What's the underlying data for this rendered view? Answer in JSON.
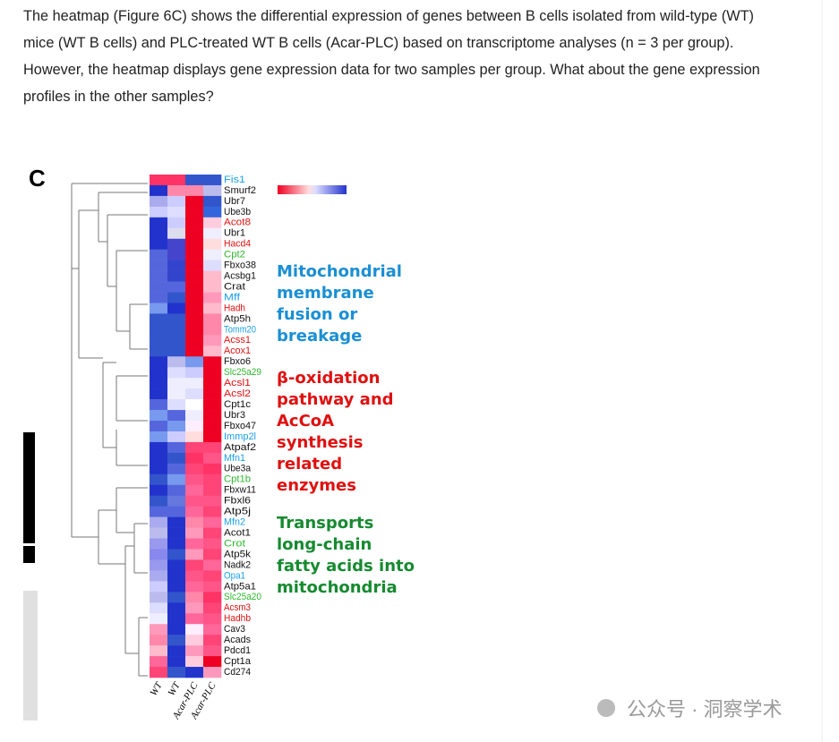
{
  "paragraph_lines": [
    "The heatmap (Figure 6C) shows the differential expression of genes between B cells isolated from wild-type (WT)",
    "mice (WT B cells) and PLC-treated WT B cells (Acar-PLC) based on transcriptome analyses (n = 3 per group).",
    "However, the heatmap displays gene expression data for two samples per group. What about the gene expression",
    "profiles in the other samples?"
  ],
  "figure": {
    "panel_label": "C",
    "column_labels": [
      "WT",
      "WT",
      "Acar-PLC",
      "Acar-PLC"
    ],
    "genes": [
      {
        "name": "Fis1",
        "color": "#1aa0e8",
        "cells": [
          "#f36",
          "#f36",
          "#35c",
          "#35c"
        ]
      },
      {
        "name": "Smurf2",
        "color": "#111",
        "cells": [
          "#23c",
          "#f8a",
          "#f8a",
          "#bbe"
        ]
      },
      {
        "name": "Ubr7",
        "color": "#111",
        "cells": [
          "#aae",
          "#ccf",
          "#e02",
          "#35c"
        ]
      },
      {
        "name": "Ube3b",
        "color": "#111",
        "cells": [
          "#ccf",
          "#ddf",
          "#e02",
          "#36d"
        ]
      },
      {
        "name": "Acot8",
        "color": "#e01010",
        "cells": [
          "#23c",
          "#ccf",
          "#e02",
          "#fcd"
        ]
      },
      {
        "name": "Ubr1",
        "color": "#111",
        "cells": [
          "#23c",
          "#dde",
          "#e02",
          "#eef"
        ]
      },
      {
        "name": "Hacd4",
        "color": "#e01010",
        "cells": [
          "#23c",
          "#44c",
          "#e02",
          "#fdd"
        ]
      },
      {
        "name": "Cpt2",
        "color": "#2eb82e",
        "cells": [
          "#56d",
          "#44c",
          "#e02",
          "#eef"
        ]
      },
      {
        "name": "Fbxo38",
        "color": "#111",
        "cells": [
          "#56d",
          "#34c",
          "#e02",
          "#ddf"
        ]
      },
      {
        "name": "Acsbg1",
        "color": "#111",
        "cells": [
          "#56d",
          "#34c",
          "#e02",
          "#fbc"
        ]
      },
      {
        "name": "Crat",
        "color": "#111",
        "cells": [
          "#56d",
          "#56d",
          "#e02",
          "#fbc"
        ]
      },
      {
        "name": "Mff",
        "color": "#1aa0e8",
        "cells": [
          "#56d",
          "#35c",
          "#e02",
          "#f9b"
        ]
      },
      {
        "name": "Hadh",
        "color": "#e01010",
        "cells": [
          "#79e",
          "#23c",
          "#e02",
          "#fbc"
        ]
      },
      {
        "name": "Atp5h",
        "color": "#111",
        "cells": [
          "#35c",
          "#35c",
          "#e02",
          "#f8a"
        ]
      },
      {
        "name": "Tomm20",
        "color": "#1aa0e8",
        "cells": [
          "#35c",
          "#35c",
          "#e02",
          "#f8a"
        ]
      },
      {
        "name": "Acss1",
        "color": "#e01010",
        "cells": [
          "#35c",
          "#35c",
          "#e02",
          "#f9b"
        ]
      },
      {
        "name": "Acox1",
        "color": "#e01010",
        "cells": [
          "#35c",
          "#35c",
          "#e02",
          "#fbc"
        ]
      },
      {
        "name": "Fbxo6",
        "color": "#111",
        "cells": [
          "#23c",
          "#bbe",
          "#79e",
          "#e02"
        ]
      },
      {
        "name": "Slc25a29",
        "color": "#2eb82e",
        "cells": [
          "#23c",
          "#ddf",
          "#ccf",
          "#e02"
        ]
      },
      {
        "name": "Acsl1",
        "color": "#e01010",
        "cells": [
          "#23c",
          "#eef",
          "#eef",
          "#e02"
        ]
      },
      {
        "name": "Acsl2",
        "color": "#e01010",
        "cells": [
          "#23c",
          "#eef",
          "#ddf",
          "#e02"
        ]
      },
      {
        "name": "Cpt1c",
        "color": "#111",
        "cells": [
          "#56d",
          "#ddf",
          "#fff",
          "#e02"
        ]
      },
      {
        "name": "Ubr3",
        "color": "#111",
        "cells": [
          "#79e",
          "#56d",
          "#eef",
          "#e02"
        ]
      },
      {
        "name": "Fbxo47",
        "color": "#111",
        "cells": [
          "#56d",
          "#79e",
          "#fef",
          "#e02"
        ]
      },
      {
        "name": "Immp2l",
        "color": "#1aa0e8",
        "cells": [
          "#79e",
          "#ccf",
          "#fdd",
          "#e02"
        ]
      },
      {
        "name": "Atpaf2",
        "color": "#111",
        "cells": [
          "#23c",
          "#56d",
          "#f47",
          "#f47"
        ]
      },
      {
        "name": "Mfn1",
        "color": "#1aa0e8",
        "cells": [
          "#23c",
          "#35c",
          "#f36",
          "#f58"
        ]
      },
      {
        "name": "Ube3a",
        "color": "#111",
        "cells": [
          "#23c",
          "#56d",
          "#f47",
          "#f36"
        ]
      },
      {
        "name": "Cpt1b",
        "color": "#2eb82e",
        "cells": [
          "#35c",
          "#79e",
          "#f58",
          "#f47"
        ]
      },
      {
        "name": "Fbxw11",
        "color": "#111",
        "cells": [
          "#23c",
          "#56d",
          "#f69",
          "#f47"
        ]
      },
      {
        "name": "Fbxl6",
        "color": "#111",
        "cells": [
          "#35c",
          "#67d",
          "#f58",
          "#f58"
        ]
      },
      {
        "name": "Atp5j",
        "color": "#111",
        "cells": [
          "#56d",
          "#56d",
          "#f69",
          "#f47"
        ]
      },
      {
        "name": "Mfn2",
        "color": "#1aa0e8",
        "cells": [
          "#aae",
          "#23c",
          "#f8a",
          "#f69"
        ]
      },
      {
        "name": "Acot1",
        "color": "#111",
        "cells": [
          "#bbe",
          "#23c",
          "#f9b",
          "#f47"
        ]
      },
      {
        "name": "Crot",
        "color": "#2eb82e",
        "cells": [
          "#99e",
          "#23c",
          "#f69",
          "#f58"
        ]
      },
      {
        "name": "Atp5k",
        "color": "#111",
        "cells": [
          "#88e",
          "#35c",
          "#f9b",
          "#f47"
        ]
      },
      {
        "name": "Nadk2",
        "color": "#111",
        "cells": [
          "#99e",
          "#23c",
          "#f47",
          "#f69"
        ]
      },
      {
        "name": "Opa1",
        "color": "#1aa0e8",
        "cells": [
          "#aae",
          "#23c",
          "#f58",
          "#f47"
        ]
      },
      {
        "name": "Atp5a1",
        "color": "#111",
        "cells": [
          "#ccf",
          "#23c",
          "#f69",
          "#f58"
        ]
      },
      {
        "name": "Slc25a20",
        "color": "#2eb82e",
        "cells": [
          "#bbe",
          "#35c",
          "#f8a",
          "#f36"
        ]
      },
      {
        "name": "Acsm3",
        "color": "#e01010",
        "cells": [
          "#ddf",
          "#23c",
          "#f9b",
          "#f47"
        ]
      },
      {
        "name": "Hadhb",
        "color": "#e01010",
        "cells": [
          "#eef",
          "#23c",
          "#f69",
          "#f58"
        ]
      },
      {
        "name": "Cav3",
        "color": "#111",
        "cells": [
          "#f9b",
          "#23c",
          "#fef",
          "#f69"
        ]
      },
      {
        "name": "Acads",
        "color": "#111",
        "cells": [
          "#f8a",
          "#35c",
          "#fcd",
          "#f47"
        ]
      },
      {
        "name": "Pdcd1",
        "color": "#111",
        "cells": [
          "#fbc",
          "#23c",
          "#f9b",
          "#f58"
        ]
      },
      {
        "name": "Cpt1a",
        "color": "#111",
        "cells": [
          "#f69",
          "#23c",
          "#fcd",
          "#e02"
        ]
      },
      {
        "name": "Cd274",
        "color": "#111",
        "cells": [
          "#f47",
          "#35c",
          "#23c",
          "#f9b"
        ]
      }
    ],
    "annotations": [
      {
        "color": "#1a8fd4",
        "lines": [
          "Mitochondrial",
          "membrane",
          "fusion or",
          "breakage"
        ]
      },
      {
        "color": "#e01010",
        "lines": [
          "β-oxidation",
          "pathway and",
          "AcCoA",
          "synthesis",
          "related",
          "enzymes"
        ]
      },
      {
        "color": "#168a30",
        "lines": [
          "Transports",
          "long-chain",
          "fatty acids into",
          "mitochondria"
        ]
      }
    ]
  },
  "watermark": "公众号 · 洞察学术"
}
